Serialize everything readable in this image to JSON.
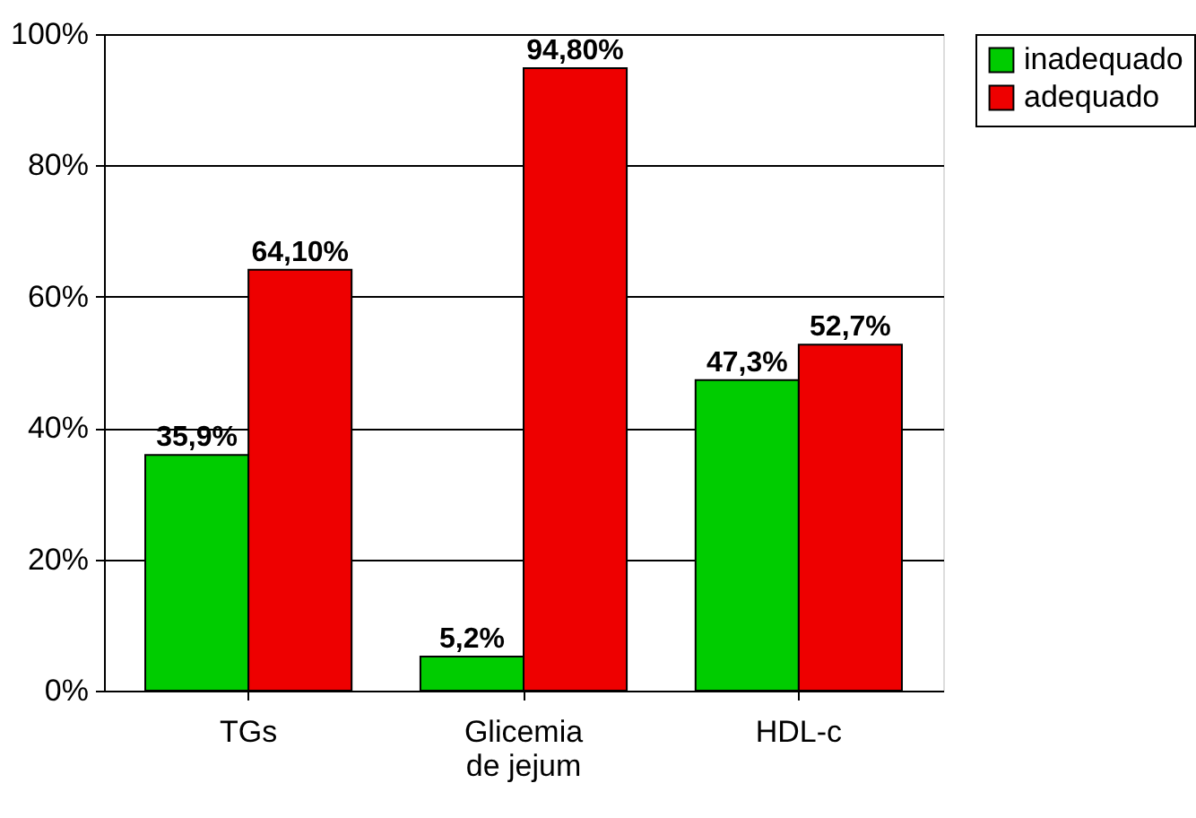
{
  "chart_data": {
    "type": "bar",
    "categories": [
      "TGs",
      "Glicemia de jejum",
      "HDL-c"
    ],
    "series": [
      {
        "name": "inadequado",
        "color": "#00cc00",
        "values": [
          35.9,
          5.2,
          47.3
        ],
        "value_labels": [
          "35,9%",
          "5,2%",
          "47,3%"
        ]
      },
      {
        "name": "adequado",
        "color": "#ee0000",
        "values": [
          64.1,
          94.8,
          52.7
        ],
        "value_labels": [
          "64,10%",
          "94,80%",
          "52,7%"
        ]
      }
    ],
    "ylim": [
      0,
      100
    ],
    "yticks": [
      {
        "value": 0,
        "label": "0%"
      },
      {
        "value": 20,
        "label": "20%"
      },
      {
        "value": 40,
        "label": "40%"
      },
      {
        "value": 60,
        "label": "60%"
      },
      {
        "value": 80,
        "label": "80%"
      },
      {
        "value": 100,
        "label": "100%"
      }
    ],
    "grid": "y",
    "legend": "right"
  }
}
